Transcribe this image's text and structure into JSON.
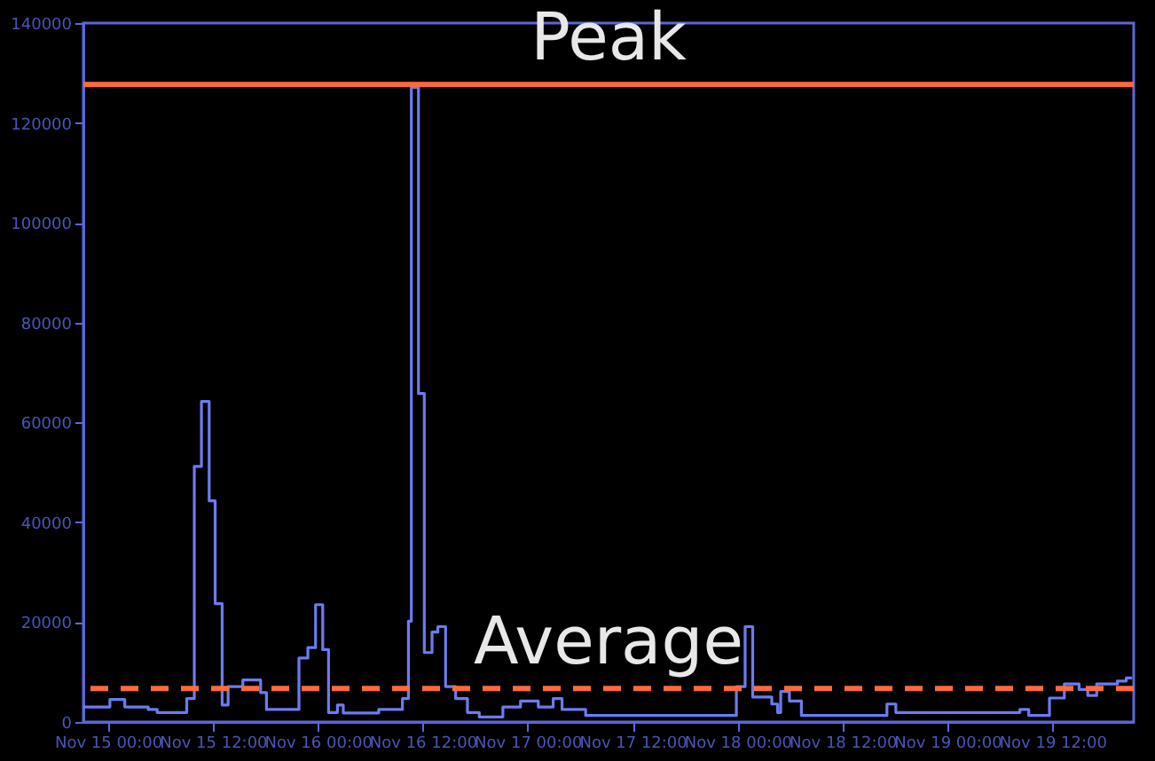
{
  "chart_data": {
    "type": "step",
    "xlim": [
      "--11-14T21:12",
      "--11-19T21:18"
    ],
    "ylim": [
      0,
      140000
    ],
    "xticks": [
      {
        "value": "--11-15T00:00",
        "label": "Nov 15 00:00"
      },
      {
        "value": "--11-15T12:00",
        "label": "Nov 15 12:00"
      },
      {
        "value": "--11-16T00:00",
        "label": "Nov 16 00:00"
      },
      {
        "value": "--11-16T12:00",
        "label": "Nov 16 12:00"
      },
      {
        "value": "--11-17T00:00",
        "label": "Nov 17 00:00"
      },
      {
        "value": "--11-17T12:00",
        "label": "Nov 17 12:00"
      },
      {
        "value": "--11-18T00:00",
        "label": "Nov 18 00:00"
      },
      {
        "value": "--11-18T12:00",
        "label": "Nov 18 12:00"
      },
      {
        "value": "--11-19T00:00",
        "label": "Nov 19 00:00"
      },
      {
        "value": "--11-19T12:00",
        "label": "Nov 19 12:00"
      }
    ],
    "yticks": [
      0,
      20000,
      40000,
      60000,
      80000,
      100000,
      120000,
      140000
    ],
    "grid": false,
    "marker": "none",
    "series": [
      {
        "color": "#6b7cf0",
        "x": [
          "--11-14T21:12",
          "--11-15T00:14",
          "--11-15T01:56",
          "--11-15T04:37",
          "--11-15T05:38",
          "--11-15T09:01",
          "--11-15T09:53",
          "--11-15T10:42",
          "--11-15T11:35",
          "--11-15T12:16",
          "--11-15T13:04",
          "--11-15T13:45",
          "--11-15T15:26",
          "--11-15T17:28",
          "--11-15T18:08",
          "--11-15T21:51",
          "--11-15T22:52",
          "--11-15T23:45",
          "--11-16T00:34",
          "--11-16T01:14",
          "--11-16T02:15",
          "--11-16T02:55",
          "--11-16T06:58",
          "--11-16T09:41",
          "--11-16T10:22",
          "--11-16T10:42",
          "--11-16T11:31",
          "--11-16T12:11",
          "--11-16T13:04",
          "--11-16T13:44",
          "--11-16T14:37",
          "--11-16T15:46",
          "--11-16T17:07",
          "--11-16T18:28",
          "--11-16T21:10",
          "--11-16T23:11",
          "--11-17T01:13",
          "--11-17T02:55",
          "--11-17T03:56",
          "--11-17T06:38",
          "--11-17T23:52",
          "--11-18T00:52",
          "--11-18T01:44",
          "--11-18T03:55",
          "--11-18T04:35",
          "--11-18T04:56",
          "--11-18T05:56",
          "--11-18T07:18",
          "--11-18T17:05",
          "--11-18T18:06",
          "--11-19T08:17",
          "--11-19T09:18",
          "--11-19T11:40",
          "--11-19T13:22",
          "--11-19T15:03",
          "--11-19T16:03",
          "--11-19T17:04",
          "--11-19T19:26",
          "--11-19T20:27",
          "--11-19T21:07"
        ],
        "values": [
          3000,
          4500,
          3000,
          2500,
          1900,
          4700,
          51200,
          64200,
          44300,
          23700,
          3400,
          7100,
          8400,
          5900,
          2500,
          12800,
          14900,
          23500,
          14500,
          1900,
          3400,
          1800,
          2500,
          4700,
          20200,
          127100,
          65800,
          13900,
          18000,
          19100,
          7100,
          4700,
          1900,
          1000,
          3000,
          4200,
          3000,
          4700,
          2500,
          1300,
          7100,
          19100,
          5000,
          3600,
          1900,
          6100,
          4200,
          1300,
          3600,
          1900,
          2500,
          1300,
          4800,
          7600,
          6500,
          5300,
          7600,
          8200,
          8800,
          8800
        ]
      }
    ],
    "ref_lines": [
      {
        "axis": "y",
        "value": 127700,
        "label": "Peak",
        "color": "#ff6a3d",
        "line_style": "solid"
      },
      {
        "axis": "y",
        "value": 6700,
        "label": "Average",
        "color": "#ff6a3d",
        "line_style": "dashed"
      }
    ]
  }
}
